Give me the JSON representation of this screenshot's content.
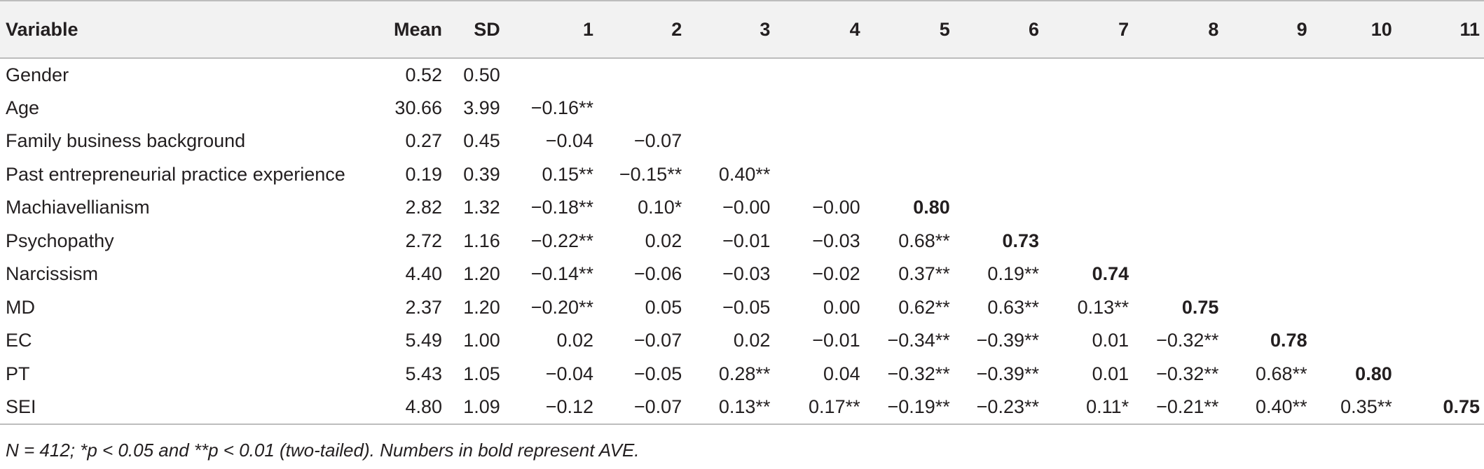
{
  "table": {
    "headers": [
      "Variable",
      "Mean",
      "SD",
      "1",
      "2",
      "3",
      "4",
      "5",
      "6",
      "7",
      "8",
      "9",
      "10",
      "11"
    ],
    "rows": [
      {
        "cells": [
          "Gender",
          "0.52",
          "0.50",
          "",
          "",
          "",
          "",
          "",
          "",
          "",
          "",
          "",
          "",
          ""
        ],
        "bold_col": -1
      },
      {
        "cells": [
          "Age",
          "30.66",
          "3.99",
          "−0.16**",
          "",
          "",
          "",
          "",
          "",
          "",
          "",
          "",
          "",
          ""
        ],
        "bold_col": -1
      },
      {
        "cells": [
          "Family business background",
          "0.27",
          "0.45",
          "−0.04",
          "−0.07",
          "",
          "",
          "",
          "",
          "",
          "",
          "",
          "",
          ""
        ],
        "bold_col": -1
      },
      {
        "cells": [
          "Past entrepreneurial practice experience",
          "0.19",
          "0.39",
          "0.15**",
          "−0.15**",
          "0.40**",
          "",
          "",
          "",
          "",
          "",
          "",
          "",
          ""
        ],
        "bold_col": -1
      },
      {
        "cells": [
          "Machiavellianism",
          "2.82",
          "1.32",
          "−0.18**",
          "0.10*",
          "−0.00",
          "−0.00",
          "0.80",
          "",
          "",
          "",
          "",
          "",
          ""
        ],
        "bold_col": 7
      },
      {
        "cells": [
          "Psychopathy",
          "2.72",
          "1.16",
          "−0.22**",
          "0.02",
          "−0.01",
          "−0.03",
          "0.68**",
          "0.73",
          "",
          "",
          "",
          "",
          ""
        ],
        "bold_col": 8
      },
      {
        "cells": [
          "Narcissism",
          "4.40",
          "1.20",
          "−0.14**",
          "−0.06",
          "−0.03",
          "−0.02",
          "0.37**",
          "0.19**",
          "0.74",
          "",
          "",
          "",
          ""
        ],
        "bold_col": 9
      },
      {
        "cells": [
          "MD",
          "2.37",
          "1.20",
          "−0.20**",
          "0.05",
          "−0.05",
          "0.00",
          "0.62**",
          "0.63**",
          "0.13**",
          "0.75",
          "",
          "",
          ""
        ],
        "bold_col": 10
      },
      {
        "cells": [
          "EC",
          "5.49",
          "1.00",
          "0.02",
          "−0.07",
          "0.02",
          "−0.01",
          "−0.34**",
          "−0.39**",
          "0.01",
          "−0.32**",
          "0.78",
          "",
          ""
        ],
        "bold_col": 11
      },
      {
        "cells": [
          "PT",
          "5.43",
          "1.05",
          "−0.04",
          "−0.05",
          "0.28**",
          "0.04",
          "−0.32**",
          "−0.39**",
          "0.01",
          "−0.32**",
          "0.68**",
          "0.80",
          ""
        ],
        "bold_col": 12
      },
      {
        "cells": [
          "SEI",
          "4.80",
          "1.09",
          "−0.12",
          "−0.07",
          "0.13**",
          "0.17**",
          "−0.19**",
          "−0.23**",
          "0.11*",
          "−0.21**",
          "0.40**",
          "0.35**",
          "0.75"
        ],
        "bold_col": 13
      }
    ]
  },
  "note": "N = 412; *p < 0.05 and **p < 0.01 (two-tailed). Numbers in bold represent AVE."
}
